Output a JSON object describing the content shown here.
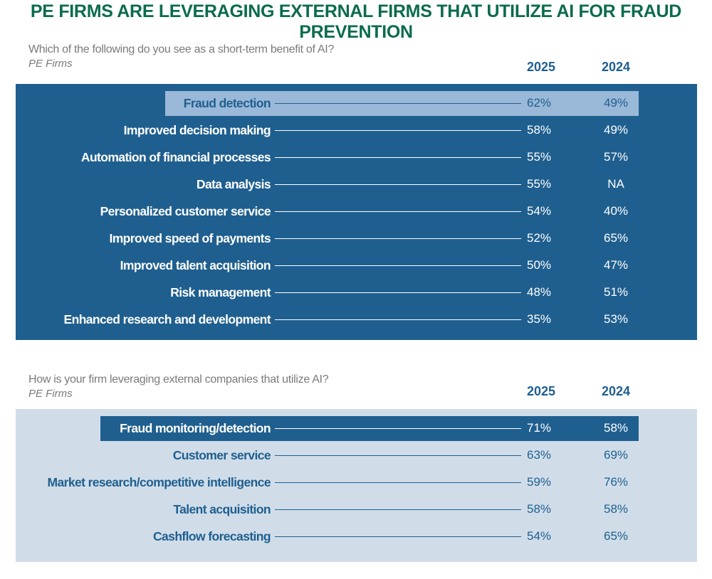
{
  "title": "PE FIRMS ARE LEVERAGING EXTERNAL FIRMS THAT UTILIZE AI FOR FRAUD PREVENTION",
  "colors": {
    "title": "#0b6b4e",
    "dark_blue": "#1f5f8f",
    "highlight_light": "#9ab8d8",
    "light_panel": "#d0dde9"
  },
  "chart_data": [
    {
      "type": "table",
      "title": "Which of the following do you see as a short-term benefit of AI?",
      "subtitle": "PE Firms",
      "columns": [
        "2025",
        "2024"
      ],
      "highlighted": "Fraud detection",
      "rows": [
        {
          "label": "Fraud detection",
          "v2025": "62%",
          "v2024": "49%"
        },
        {
          "label": "Improved decision making",
          "v2025": "58%",
          "v2024": "49%"
        },
        {
          "label": "Automation of financial processes",
          "v2025": "55%",
          "v2024": "57%"
        },
        {
          "label": "Data analysis",
          "v2025": "55%",
          "v2024": "NA"
        },
        {
          "label": "Personalized customer service",
          "v2025": "54%",
          "v2024": "40%"
        },
        {
          "label": "Improved speed of payments",
          "v2025": "52%",
          "v2024": "65%"
        },
        {
          "label": "Improved talent acquisition",
          "v2025": "50%",
          "v2024": "47%"
        },
        {
          "label": "Risk management",
          "v2025": "48%",
          "v2024": "51%"
        },
        {
          "label": "Enhanced research and development",
          "v2025": "35%",
          "v2024": "53%"
        }
      ]
    },
    {
      "type": "table",
      "title": "How is your firm leveraging external companies that utilize AI?",
      "subtitle": "PE Firms",
      "columns": [
        "2025",
        "2024"
      ],
      "highlighted": "Fraud monitoring/detection",
      "rows": [
        {
          "label": "Fraud monitoring/detection",
          "v2025": "71%",
          "v2024": "58%"
        },
        {
          "label": "Customer service",
          "v2025": "63%",
          "v2024": "69%"
        },
        {
          "label": "Market research/competitive intelligence",
          "v2025": "59%",
          "v2024": "76%"
        },
        {
          "label": "Talent acquisition",
          "v2025": "58%",
          "v2024": "58%"
        },
        {
          "label": "Cashflow forecasting",
          "v2025": "54%",
          "v2024": "65%"
        }
      ]
    }
  ]
}
